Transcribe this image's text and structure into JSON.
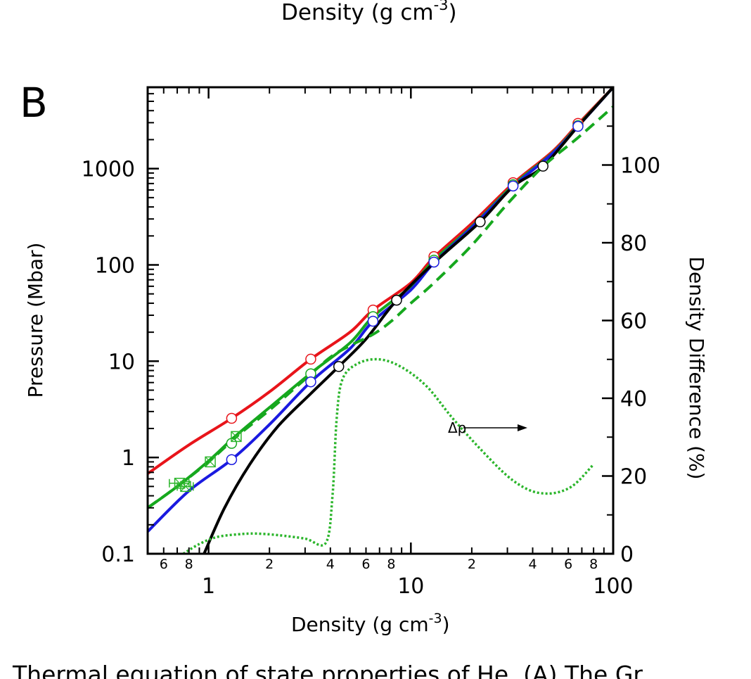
{
  "top_fragment": {
    "text": "Density (g cm",
    "sup": "-3",
    "close": ")"
  },
  "panel_label": "B",
  "caption_fragment": "Thermal equation of state properties of He. (A) The Gr",
  "chart_data": {
    "type": "line",
    "x_scale": "log",
    "y_scale": "log",
    "xlabel": "Density (g cm",
    "xlabel_sup": "-3",
    "xlabel_close": ")",
    "ylabel": "Pressure (Mbar)",
    "y2label": "Density Difference (%)",
    "xlim": [
      0.5,
      100
    ],
    "ylim": [
      0.1,
      7000
    ],
    "y2lim": [
      0,
      120
    ],
    "x_ticks": [
      {
        "v": 1,
        "label": "1"
      },
      {
        "v": 10,
        "label": "10"
      },
      {
        "v": 100,
        "label": "100"
      }
    ],
    "x_minor_ticks": [
      {
        "v": 0.6,
        "label": "6"
      },
      {
        "v": 0.8,
        "label": "8"
      },
      {
        "v": 2,
        "label": "2"
      },
      {
        "v": 4,
        "label": "4"
      },
      {
        "v": 6,
        "label": "6"
      },
      {
        "v": 8,
        "label": "8"
      },
      {
        "v": 20,
        "label": "2"
      },
      {
        "v": 40,
        "label": "4"
      },
      {
        "v": 60,
        "label": "6"
      },
      {
        "v": 80,
        "label": "8"
      }
    ],
    "y_ticks": [
      {
        "v": 0.1,
        "label": "0.1"
      },
      {
        "v": 1,
        "label": "1"
      },
      {
        "v": 10,
        "label": "10"
      },
      {
        "v": 100,
        "label": "100"
      },
      {
        "v": 1000,
        "label": "1000"
      }
    ],
    "y2_ticks": [
      {
        "v": 0,
        "label": "0"
      },
      {
        "v": 20,
        "label": "20"
      },
      {
        "v": 40,
        "label": "40"
      },
      {
        "v": 60,
        "label": "60"
      },
      {
        "v": 80,
        "label": "80"
      },
      {
        "v": 100,
        "label": "100"
      }
    ],
    "series": [
      {
        "color": "#e8141a",
        "style": "solid",
        "axis": "left",
        "points": [
          [
            0.5,
            0.68
          ],
          [
            0.8,
            1.35
          ],
          [
            1.3,
            2.55
          ],
          [
            2,
            4.8
          ],
          [
            3.2,
            10.5
          ],
          [
            5,
            20
          ],
          [
            6.5,
            34
          ],
          [
            10,
            65
          ],
          [
            13,
            120
          ],
          [
            20,
            270
          ],
          [
            32,
            700
          ],
          [
            50,
            1500
          ],
          [
            67,
            2900
          ],
          [
            100,
            7000
          ]
        ]
      },
      {
        "color": "#16a81e",
        "style": "solid",
        "axis": "left",
        "points": [
          [
            0.5,
            0.3
          ],
          [
            0.7,
            0.5
          ],
          [
            1,
            0.92
          ],
          [
            1.35,
            1.65
          ],
          [
            2,
            3.3
          ],
          [
            3.2,
            7.5
          ],
          [
            5,
            15.5
          ],
          [
            6.5,
            29
          ],
          [
            10,
            60
          ],
          [
            13,
            112
          ],
          [
            20,
            250
          ],
          [
            32,
            670
          ],
          [
            50,
            1450
          ],
          [
            67,
            2800
          ],
          [
            100,
            7000
          ]
        ]
      },
      {
        "color": "#1a1ae0",
        "style": "solid",
        "axis": "left",
        "points": [
          [
            0.5,
            0.17
          ],
          [
            0.8,
            0.45
          ],
          [
            1.3,
            0.95
          ],
          [
            2,
            2.2
          ],
          [
            3.2,
            6.1
          ],
          [
            5,
            13.5
          ],
          [
            6.5,
            26
          ],
          [
            10,
            55
          ],
          [
            13,
            105
          ],
          [
            20,
            245
          ],
          [
            32,
            650
          ],
          [
            50,
            1430
          ],
          [
            67,
            2750
          ],
          [
            100,
            7000
          ]
        ]
      },
      {
        "color": "#000000",
        "style": "solid",
        "axis": "left",
        "points": [
          [
            0.95,
            0.1
          ],
          [
            1.2,
            0.3
          ],
          [
            1.6,
            0.85
          ],
          [
            2.2,
            2.1
          ],
          [
            3.2,
            4.6
          ],
          [
            4.4,
            8.8
          ],
          [
            6,
            17
          ],
          [
            8.5,
            43
          ],
          [
            13,
            105
          ],
          [
            22,
            280
          ],
          [
            32,
            650
          ],
          [
            45,
            1050
          ],
          [
            67,
            2750
          ],
          [
            100,
            7000
          ]
        ]
      },
      {
        "color": "#16a81e",
        "style": "dashed",
        "axis": "left",
        "points": [
          [
            0.5,
            0.3
          ],
          [
            0.7,
            0.5
          ],
          [
            1,
            0.9
          ],
          [
            1.4,
            1.7
          ],
          [
            2,
            3.1
          ],
          [
            3,
            6.5
          ],
          [
            4,
            11
          ],
          [
            5,
            14.5
          ],
          [
            6.5,
            19
          ],
          [
            8,
            26
          ],
          [
            10,
            40
          ],
          [
            13,
            65
          ],
          [
            20,
            160
          ],
          [
            30,
            430
          ],
          [
            45,
            1050
          ],
          [
            67,
            2100
          ],
          [
            100,
            4400
          ]
        ]
      },
      {
        "color": "#2bb52b",
        "style": "dotted",
        "axis": "right",
        "points": [
          [
            0.75,
            0
          ],
          [
            0.9,
            2.5
          ],
          [
            1.1,
            4.3
          ],
          [
            1.4,
            5
          ],
          [
            1.7,
            5.2
          ],
          [
            2.2,
            4.8
          ],
          [
            3,
            3.9
          ],
          [
            3.8,
            2.8
          ],
          [
            4.1,
            15
          ],
          [
            4.3,
            35
          ],
          [
            4.6,
            45
          ],
          [
            5.5,
            49
          ],
          [
            7,
            50
          ],
          [
            9,
            48
          ],
          [
            12,
            43
          ],
          [
            16,
            35
          ],
          [
            22,
            27
          ],
          [
            30,
            20
          ],
          [
            38,
            16.5
          ],
          [
            46,
            15.5
          ],
          [
            55,
            16
          ],
          [
            65,
            18
          ],
          [
            80,
            23
          ]
        ]
      }
    ],
    "markers": [
      {
        "color": "#e8141a",
        "points": [
          [
            1.3,
            2.55
          ],
          [
            3.2,
            10.5
          ],
          [
            6.5,
            34
          ],
          [
            13,
            122
          ],
          [
            32,
            715
          ],
          [
            67,
            2950
          ]
        ]
      },
      {
        "color": "#16a81e",
        "points": [
          [
            1.3,
            1.4
          ],
          [
            3.2,
            7.4
          ],
          [
            6.5,
            29
          ],
          [
            13,
            112
          ],
          [
            32,
            680
          ],
          [
            67,
            2800
          ]
        ]
      },
      {
        "color": "#1a1ae0",
        "points": [
          [
            1.3,
            0.95
          ],
          [
            3.2,
            6.1
          ],
          [
            6.5,
            26
          ],
          [
            13,
            107
          ],
          [
            32,
            660
          ],
          [
            67,
            2750
          ]
        ]
      },
      {
        "color": "#000000",
        "points": [
          [
            4.4,
            8.8
          ],
          [
            8.5,
            43
          ],
          [
            22,
            280
          ],
          [
            45,
            1060
          ]
        ]
      }
    ],
    "exp_points": {
      "color": "#2bb52b",
      "points": [
        [
          0.72,
          0.54,
          0.08
        ],
        [
          0.77,
          0.5,
          0.07
        ],
        [
          1.02,
          0.9,
          0.0
        ],
        [
          1.37,
          1.65,
          0.0
        ]
      ]
    },
    "annotation": {
      "text": "Δρ",
      "x": 17,
      "y2": 40,
      "arrow_to_x": 38
    }
  }
}
